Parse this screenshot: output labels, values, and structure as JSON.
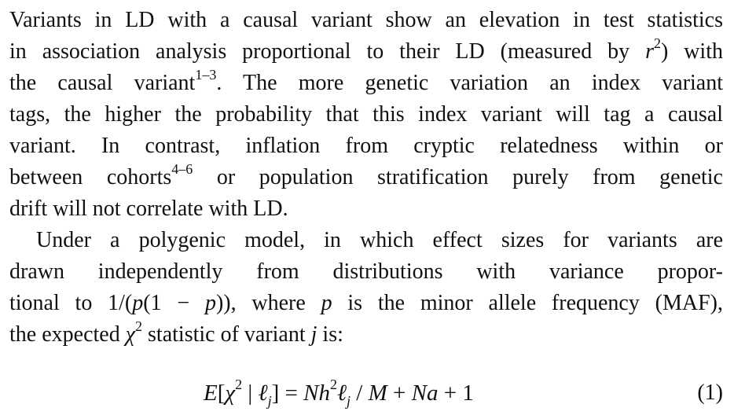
{
  "paragraph1": {
    "lines": [
      {
        "parts": [
          "Variants in LD with a causal variant show an elevation in test statistics"
        ]
      },
      {
        "parts": [
          "in association analysis proportional to their LD (measured by ",
          "r",
          "2",
          ") with"
        ]
      },
      {
        "parts": [
          "the causal variant",
          "1–3",
          ". The more genetic variation an index variant"
        ]
      },
      {
        "parts": [
          "tags, the higher the probability that this index variant will tag a causal"
        ]
      },
      {
        "parts": [
          "variant. In contrast, inflation from cryptic relatedness within or"
        ]
      },
      {
        "parts": [
          "between cohorts",
          "4–6",
          " or population stratification purely from genetic"
        ]
      },
      {
        "parts": [
          "drift will not correlate with LD."
        ]
      }
    ]
  },
  "paragraph2": {
    "lines": [
      {
        "parts": [
          "Under a polygenic model, in which effect sizes for variants are"
        ]
      },
      {
        "parts": [
          "drawn independently from distributions with variance propor-"
        ]
      },
      {
        "parts": [
          "tional to 1/(",
          "p",
          "(1 − ",
          "p",
          ")), where ",
          "p",
          " is the minor allele frequency (MAF),"
        ]
      },
      {
        "parts": [
          "the expected ",
          "χ",
          "2",
          " statistic of variant ",
          "j",
          " is:"
        ]
      }
    ]
  },
  "equation": {
    "lhs_E": "E",
    "lhs_open": "[",
    "chi": "χ",
    "chi_sup": "2",
    "bar": " | ",
    "ell": "ℓ",
    "ell_sub": "j",
    "lhs_close": "] = ",
    "N": "N",
    "h": "h",
    "h_sup": "2",
    "ell2": "ℓ",
    "ell2_sub": "j",
    "div": " / ",
    "M": "M",
    "plus1": " + ",
    "Na": "Na",
    "plus2": " + 1",
    "number": "(1)"
  }
}
